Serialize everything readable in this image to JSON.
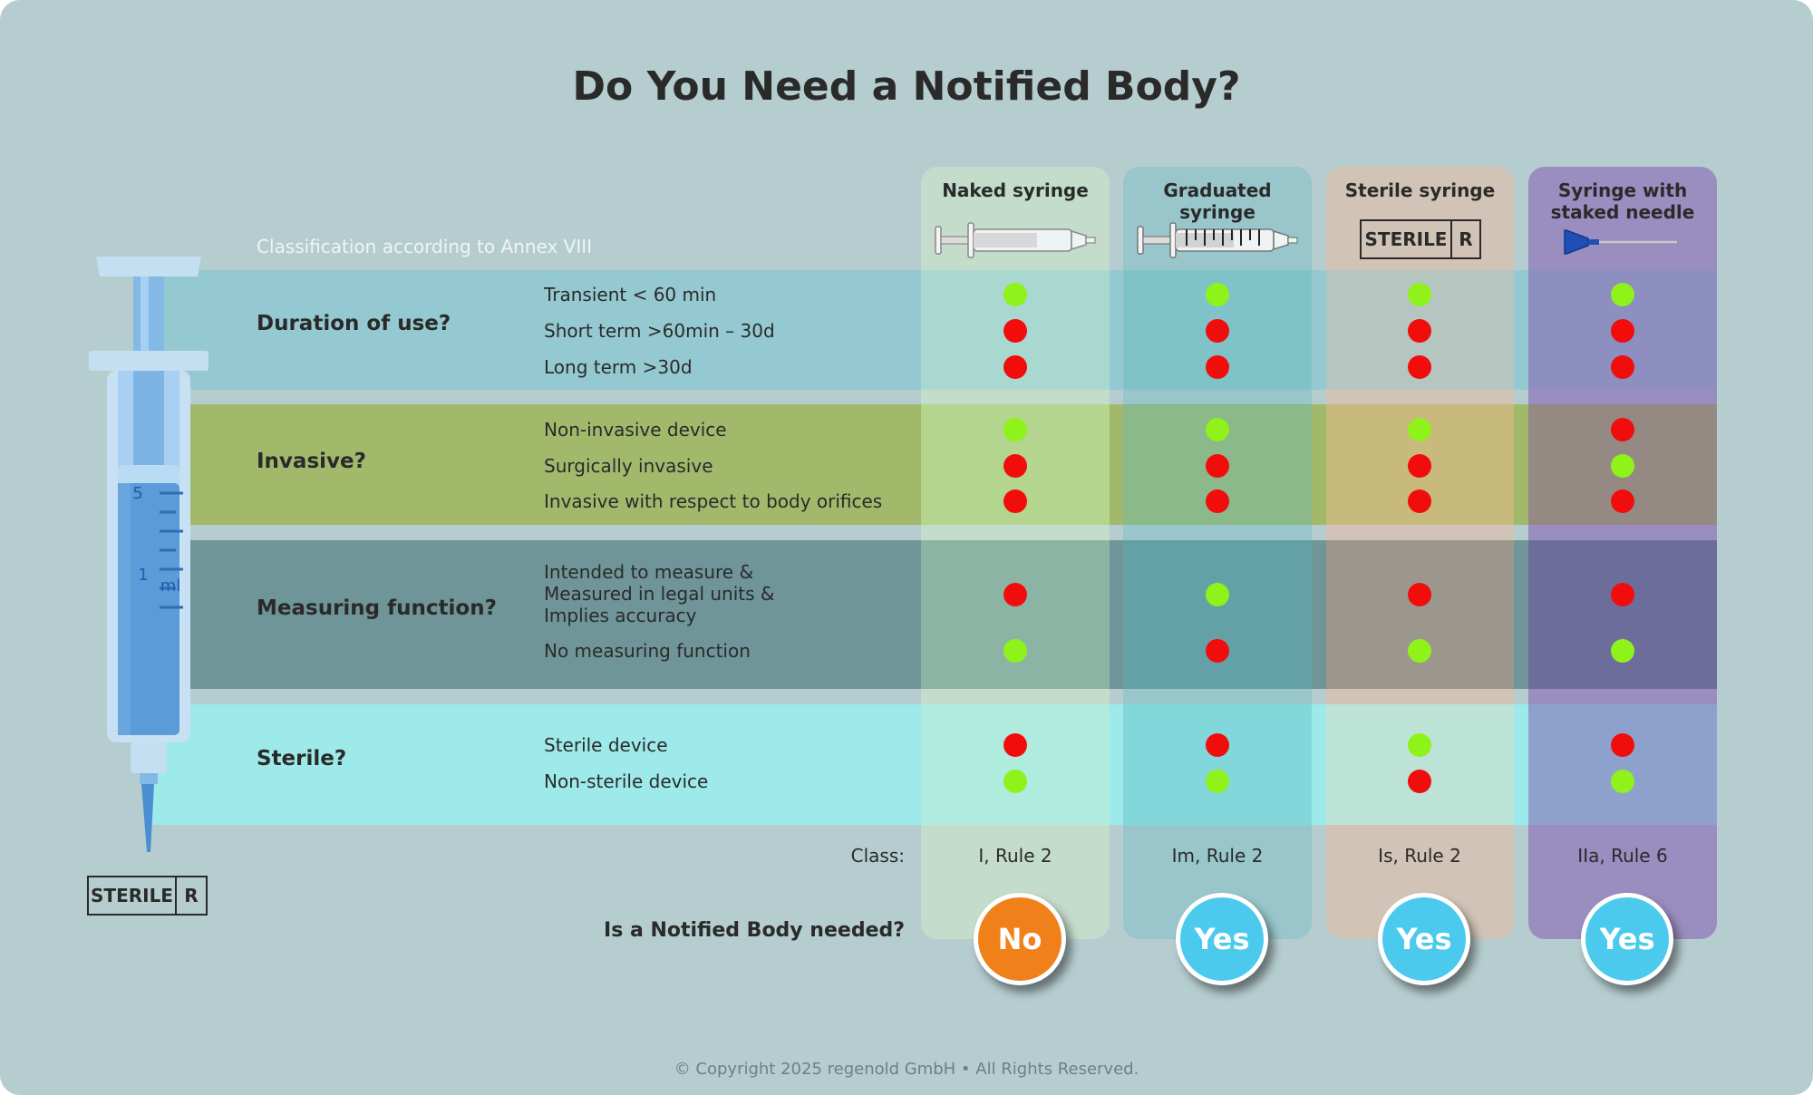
{
  "title": "Do You Need a Notified Body?",
  "annex_label": "Classification according to Annex VIII",
  "columns": [
    {
      "name": "Naked syringe",
      "class": "I, Rule 2",
      "answer": "No",
      "answer_color": "#f0801a"
    },
    {
      "name": "Graduated syringe",
      "class": "Im, Rule 2",
      "answer": "Yes",
      "answer_color": "#4ccaee"
    },
    {
      "name": "Sterile syringe",
      "class": "Is, Rule 2",
      "answer": "Yes",
      "answer_color": "#4ccaee"
    },
    {
      "name": "Syringe with\nstaked needle",
      "class": "IIa, Rule 6",
      "answer": "Yes",
      "answer_color": "#4ccaee"
    }
  ],
  "sterile_label": {
    "text": "STERILE",
    "mark": "R"
  },
  "syringe_scale": {
    "mark_5": "5",
    "mark_1": "1",
    "unit": "ml"
  },
  "sections": [
    {
      "question": "Duration of use?",
      "options": [
        {
          "label": "Transient < 60 min",
          "dots": [
            "green",
            "green",
            "green",
            "green"
          ]
        },
        {
          "label": "Short term >60min – 30d",
          "dots": [
            "red",
            "red",
            "red",
            "red"
          ]
        },
        {
          "label": "Long term >30d",
          "dots": [
            "red",
            "red",
            "red",
            "red"
          ]
        }
      ]
    },
    {
      "question": "Invasive?",
      "options": [
        {
          "label": "Non-invasive device",
          "dots": [
            "green",
            "green",
            "green",
            "red"
          ]
        },
        {
          "label": "Surgically invasive",
          "dots": [
            "red",
            "red",
            "red",
            "green"
          ]
        },
        {
          "label": "Invasive with respect to body orifices",
          "dots": [
            "red",
            "red",
            "red",
            "red"
          ]
        }
      ]
    },
    {
      "question": "Measuring function?",
      "options": [
        {
          "label": "Intended to measure &\nMeasured in legal units &\nImplies accuracy",
          "dots": [
            "red",
            "green",
            "red",
            "red"
          ]
        },
        {
          "label": "No measuring function",
          "dots": [
            "green",
            "red",
            "green",
            "green"
          ]
        }
      ]
    },
    {
      "question": "Sterile?",
      "options": [
        {
          "label": "Sterile device",
          "dots": [
            "red",
            "red",
            "green",
            "red"
          ]
        },
        {
          "label": "Non-sterile device",
          "dots": [
            "green",
            "green",
            "red",
            "green"
          ]
        }
      ]
    }
  ],
  "class_label": "Class:",
  "notified_body_question": "Is a Notified Body needed?",
  "copyright": "© Copyright 2025 regenold GmbH • All Rights Reserved.",
  "colors": {
    "background": "#b6cdcf",
    "dot_green": "#8ff21a",
    "dot_red": "#f20d0d",
    "band_duration": "#95c9d2",
    "band_invasive": "#a2b96c",
    "band_measuring": "#6f9599",
    "band_sterile": "#9eeaea"
  }
}
